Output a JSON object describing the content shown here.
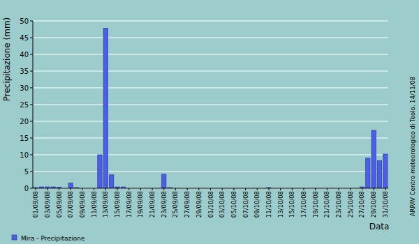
{
  "chart_data": {
    "type": "bar",
    "y_label": "Precipitazione (mm)",
    "x_label": "Data",
    "annotations": [
      "ARPAV Centro meteorologico di Teolo. 14/11/08"
    ],
    "categories": [
      "01/09/08",
      null,
      "03/09/08",
      null,
      "05/09/08",
      null,
      "07/09/08",
      null,
      "09/09/08",
      null,
      "11/09/08",
      null,
      "13/09/08",
      null,
      "15/09/08",
      null,
      "17/09/08",
      null,
      "19/09/08",
      null,
      "21/09/08",
      null,
      "23/09/08",
      null,
      "25/09/08",
      null,
      "27/09/08",
      null,
      "29/09/08",
      null,
      "01/10/08",
      null,
      "03/10/08",
      null,
      "05/10/08",
      null,
      "07/10/08",
      null,
      "09/10/08",
      null,
      "11/10/08",
      null,
      "13/10/08",
      null,
      "15/10/08",
      null,
      "17/10/08",
      null,
      "19/10/08",
      null,
      "21/10/08",
      null,
      "23/10/08",
      null,
      "25/10/08",
      null,
      "27/10/08",
      null,
      "29/10/08",
      null,
      "31/10/08"
    ],
    "series": [
      {
        "name": "Mira - Precipitazione",
        "color": "#4d5ee6",
        "values": [
          0.2,
          0.4,
          0.4,
          0.4,
          0.3,
          0,
          1.6,
          0.2,
          0,
          0,
          0,
          10,
          47.8,
          4,
          0.4,
          0.4,
          0,
          0,
          0,
          0,
          0,
          0,
          4.2,
          0.2,
          0,
          0,
          0,
          0,
          0,
          0,
          0,
          0,
          0,
          0,
          0,
          0,
          0,
          0,
          0,
          0,
          0.2,
          0,
          0,
          0,
          0,
          0,
          0,
          0,
          0,
          0,
          0,
          0,
          0,
          0,
          0,
          0,
          0.4,
          9,
          17.3,
          8.2,
          10.2
        ]
      }
    ],
    "ylim": [
      0,
      50
    ],
    "yticks": [
      0,
      5,
      10,
      15,
      20,
      25,
      30,
      35,
      40,
      45,
      50
    ],
    "grid": true,
    "legend": "bottom"
  }
}
